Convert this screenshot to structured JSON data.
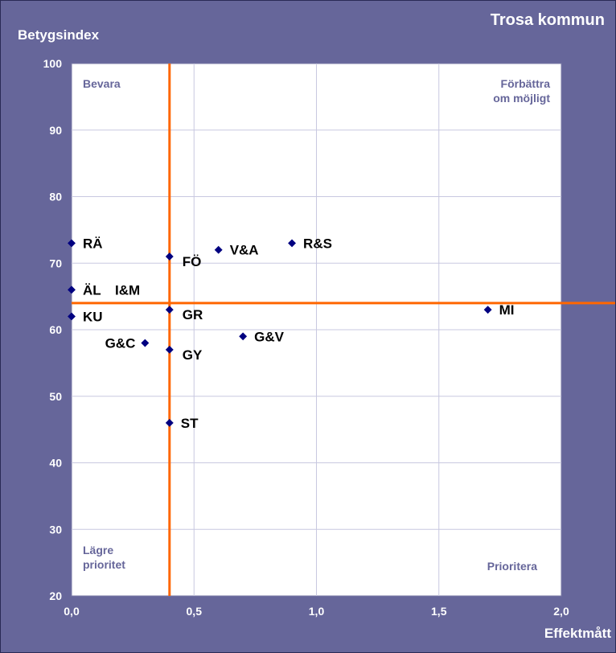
{
  "chart_data": {
    "type": "scatter",
    "title": "Trosa kommun",
    "xlabel": "Effektmått",
    "ylabel": "Betygsindex",
    "xlim": [
      0,
      2
    ],
    "ylim": [
      20,
      100
    ],
    "x_ticks": [
      "0,0",
      "0,5",
      "1,0",
      "1,5",
      "2,0"
    ],
    "y_ticks": [
      "20",
      "30",
      "40",
      "50",
      "60",
      "70",
      "80",
      "90",
      "100"
    ],
    "grid": true,
    "reference_lines": {
      "x": 0.4,
      "y": 64,
      "color": "#ff6600"
    },
    "quadrant_labels": {
      "top_left": "Bevara",
      "top_right": [
        "Förbättra",
        "om möjligt"
      ],
      "bottom_left": [
        "Lägre",
        "prioritet"
      ],
      "bottom_right": "Prioritera"
    },
    "marker_color": "#000080",
    "points": [
      {
        "label": "RÄ",
        "x": 0.0,
        "y": 73,
        "label_pos": "right"
      },
      {
        "label": "ÄL",
        "x": 0.0,
        "y": 66,
        "label_pos": "right"
      },
      {
        "label": "I&M",
        "x": 0.0,
        "y": 66,
        "label_pos": "right-far"
      },
      {
        "label": "KU",
        "x": 0.0,
        "y": 62,
        "label_pos": "right"
      },
      {
        "label": "FÖ",
        "x": 0.4,
        "y": 71,
        "label_pos": "right-below"
      },
      {
        "label": "GR",
        "x": 0.4,
        "y": 63,
        "label_pos": "right-below"
      },
      {
        "label": "GY",
        "x": 0.4,
        "y": 57,
        "label_pos": "right-below"
      },
      {
        "label": "ST",
        "x": 0.4,
        "y": 46,
        "label_pos": "right"
      },
      {
        "label": "G&C",
        "x": 0.3,
        "y": 58,
        "label_pos": "left"
      },
      {
        "label": "V&A",
        "x": 0.6,
        "y": 72,
        "label_pos": "right"
      },
      {
        "label": "R&S",
        "x": 0.9,
        "y": 73,
        "label_pos": "right"
      },
      {
        "label": "G&V",
        "x": 0.7,
        "y": 59,
        "label_pos": "right"
      },
      {
        "label": "MI",
        "x": 1.7,
        "y": 63,
        "label_pos": "right"
      }
    ]
  }
}
